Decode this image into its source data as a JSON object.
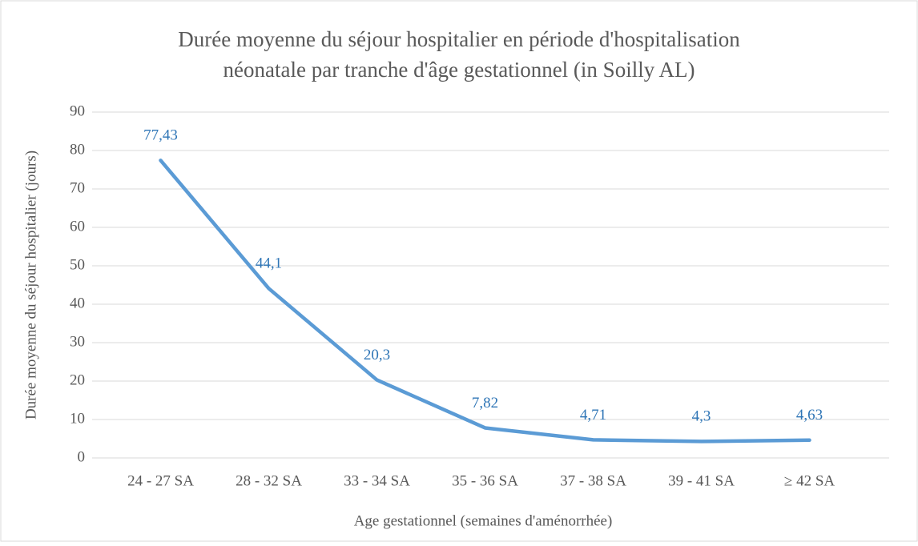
{
  "chart_data": {
    "type": "line",
    "title": [
      "Durée moyenne du séjour hospitalier en période d'hospitalisation",
      "néonatale par tranche d'âge gestationnel (in Soilly AL)"
    ],
    "x_label": "Age gestationnel (semaines d'aménorrhée)",
    "y_label": "Durée moyenne du séjour hospitalier (jours)",
    "categories": [
      "24 - 27 SA",
      "28 - 32 SA",
      "33 - 34 SA",
      "35 - 36 SA",
      "37 - 38 SA",
      "39 - 41 SA",
      "≥ 42 SA"
    ],
    "series": [
      {
        "name": "Durée moyenne",
        "color": "#5b9bd5",
        "values": [
          77.43,
          44.1,
          20.3,
          7.82,
          4.71,
          4.3,
          4.63
        ],
        "value_labels": [
          "77,43",
          "44,1",
          "20,3",
          "7,82",
          "4,71",
          "4,3",
          "4,63"
        ]
      }
    ],
    "ylim": [
      0,
      90
    ],
    "yticks": [
      0,
      10,
      20,
      30,
      40,
      50,
      60,
      70,
      80,
      90
    ],
    "grid": true
  }
}
